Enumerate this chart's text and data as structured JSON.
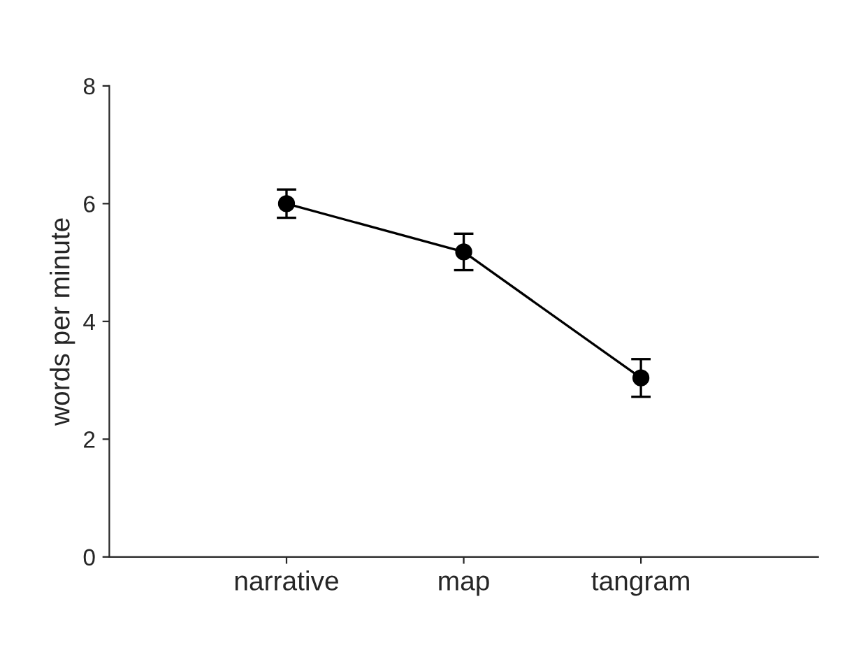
{
  "chart_data": {
    "type": "line",
    "ylabel": "words per minute",
    "categories": [
      "narrative",
      "map",
      "tangram"
    ],
    "series": [
      {
        "color": "#000000",
        "values": [
          6.0,
          5.18,
          3.04
        ],
        "errors": [
          0.24,
          0.31,
          0.32
        ]
      }
    ],
    "ylim": [
      0,
      8
    ],
    "yticks": [
      0,
      2,
      4,
      6,
      8
    ],
    "grid": false,
    "legend": false,
    "marker": "circle",
    "line_style": "solid"
  }
}
